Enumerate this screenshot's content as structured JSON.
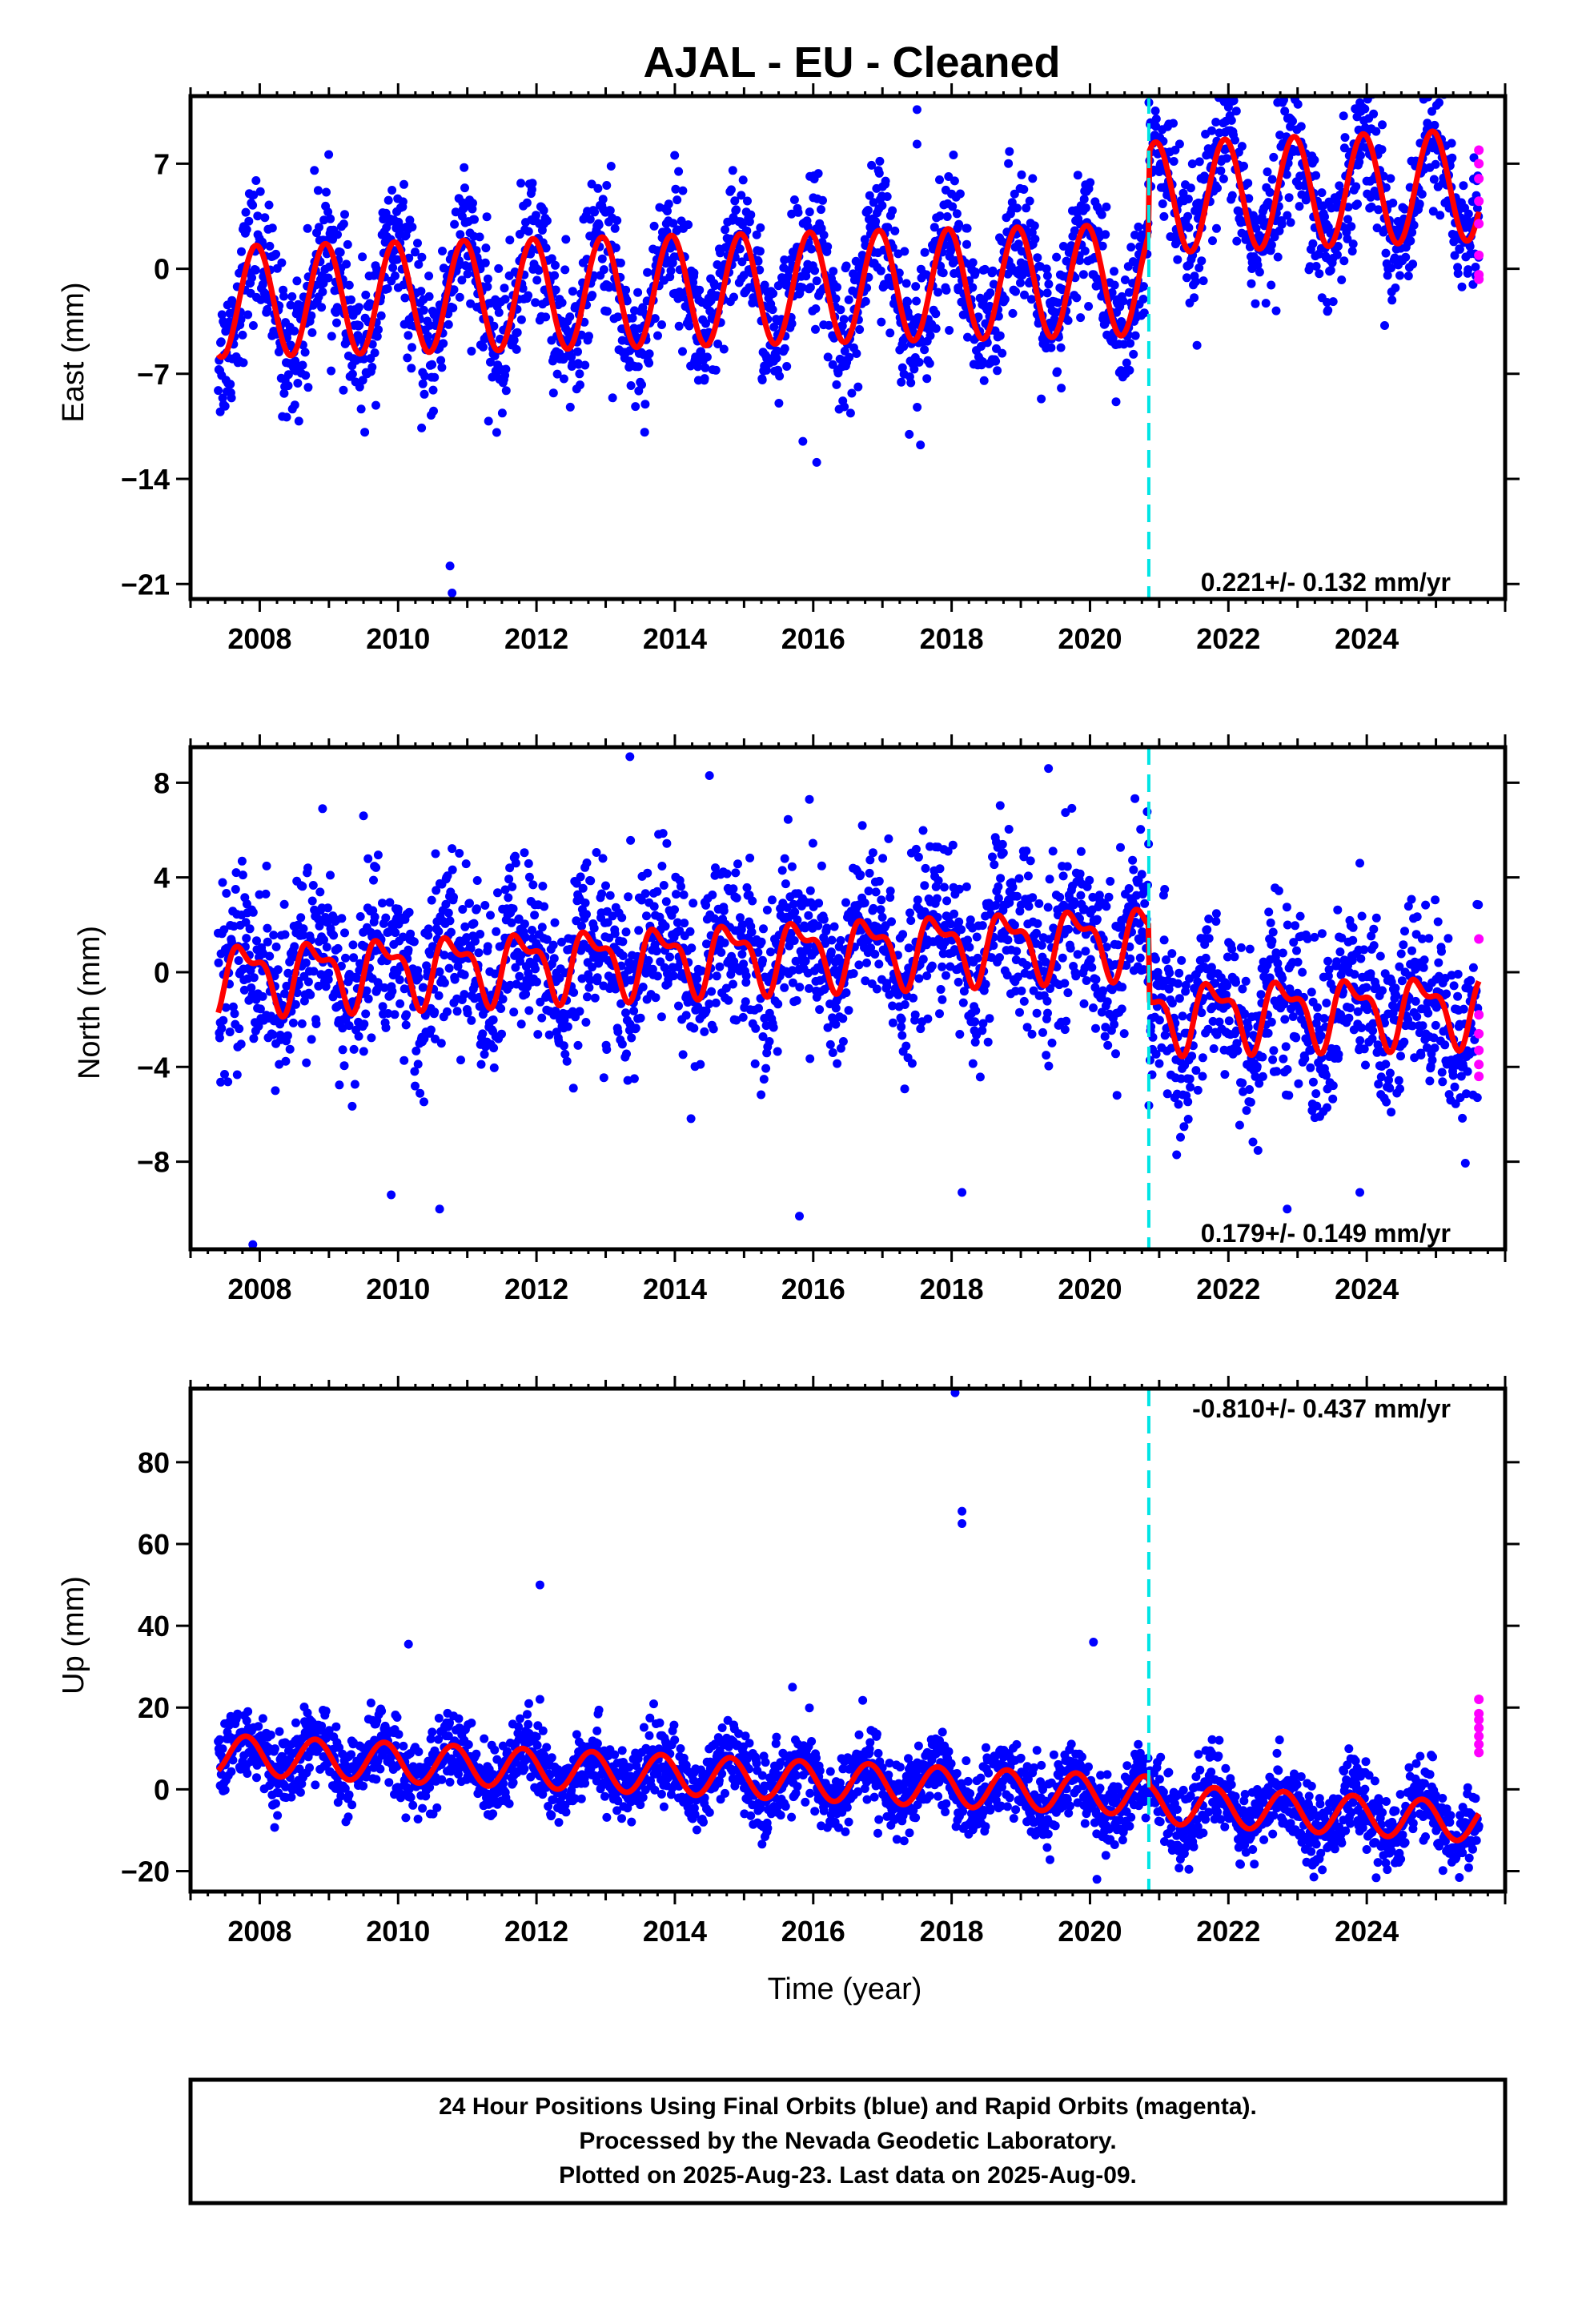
{
  "title": "AJAL  - EU - Cleaned",
  "footer": {
    "lines": [
      "24 Hour Positions Using Final Orbits (blue) and Rapid Orbits (magenta).",
      "Processed by the Nevada Geodetic Laboratory.",
      "Plotted on 2025-Aug-23. Last data on 2025-Aug-09."
    ]
  },
  "colors": {
    "final_orbits": "#0000ff",
    "rapid_orbits": "#ff00ff",
    "model_fit": "#ff0000",
    "offset_line": "#00e5e5",
    "frame": "#000000"
  },
  "chart_data": [
    {
      "type": "scatter",
      "component": "east",
      "ylabel": "East (mm)",
      "xlabel": "",
      "xlim": [
        2007.0,
        2026.0
      ],
      "ylim": [
        -22,
        11.5
      ],
      "xticks": [
        2008,
        2010,
        2012,
        2014,
        2016,
        2018,
        2020,
        2022,
        2024
      ],
      "yticks": [
        7,
        0,
        -7,
        -14,
        -21
      ],
      "ytick_labels": [
        "7",
        "0",
        "−7",
        "−14",
        "−21"
      ],
      "rate_text": "0.221+/- 0.132 mm/yr",
      "rate_position": "bottom-right",
      "offset_epoch": 2020.85,
      "fit": {
        "t_start": 2007.4,
        "t_end": 2025.62,
        "pre_intercept": -2.2,
        "pre_slope": 0.11,
        "post_intercept": 2.3,
        "post_slope": 0.18,
        "ref_year": 2007.4,
        "amplitude": 3.7,
        "phase_year": 2007.7
      },
      "scatter_band": {
        "spread": 2.3,
        "count": 2600
      },
      "outliers": [
        {
          "x": 2010.75,
          "y": -19.8
        },
        {
          "x": 2010.78,
          "y": -21.6
        },
        {
          "x": 2016.05,
          "y": -12.9
        },
        {
          "x": 2015.85,
          "y": -11.5
        },
        {
          "x": 2008.7,
          "y": -7.9
        },
        {
          "x": 2013.1,
          "y": -8.6
        },
        {
          "x": 2017.5,
          "y": 10.6
        },
        {
          "x": 2017.5,
          "y": 8.3
        }
      ],
      "rapid_points": {
        "x": 2025.62,
        "y": [
          7.9,
          7.0,
          6.0,
          4.5,
          3.0,
          0.9,
          -0.4,
          -0.7
        ]
      }
    },
    {
      "type": "scatter",
      "component": "north",
      "ylabel": "North (mm)",
      "xlabel": "",
      "xlim": [
        2007.0,
        2026.0
      ],
      "ylim": [
        -11.7,
        9.5
      ],
      "xticks": [
        2008,
        2010,
        2012,
        2014,
        2016,
        2018,
        2020,
        2022,
        2024
      ],
      "yticks": [
        8,
        4,
        0,
        -4,
        -8
      ],
      "ytick_labels": [
        "8",
        "4",
        "0",
        "−4",
        "−8"
      ],
      "rate_text": "0.179+/- 0.149 mm/yr",
      "rate_position": "bottom-right",
      "offset_epoch": 2020.85,
      "fit": {
        "t_start": 2007.4,
        "t_end": 2025.62,
        "pre_intercept": -0.2,
        "pre_slope": 0.12,
        "post_intercept": -2.6,
        "post_slope": 0.06,
        "ref_year": 2007.4,
        "amplitude": 1.25,
        "phase_year": 2007.55,
        "second_harmonic": 0.6
      },
      "scatter_band": {
        "spread": 1.8,
        "count": 2600
      },
      "outliers": [
        {
          "x": 2007.9,
          "y": -11.5
        },
        {
          "x": 2009.9,
          "y": -9.4
        },
        {
          "x": 2010.6,
          "y": -10.0
        },
        {
          "x": 2015.8,
          "y": -10.3
        },
        {
          "x": 2018.15,
          "y": -9.3
        },
        {
          "x": 2022.85,
          "y": -10.0
        },
        {
          "x": 2013.35,
          "y": 9.1
        },
        {
          "x": 2014.5,
          "y": 8.3
        },
        {
          "x": 2009.5,
          "y": 6.6
        },
        {
          "x": 2019.4,
          "y": 8.6
        },
        {
          "x": 2023.9,
          "y": 4.6
        },
        {
          "x": 2023.9,
          "y": -9.3
        }
      ],
      "rapid_points": {
        "x": 2025.62,
        "y": [
          1.4,
          -1.8,
          -2.6,
          -3.3,
          -3.9,
          -4.4
        ]
      }
    },
    {
      "type": "scatter",
      "component": "up",
      "ylabel": "Up (mm)",
      "xlabel": "Time (year)",
      "xlim": [
        2007.0,
        2026.0
      ],
      "ylim": [
        -25,
        98
      ],
      "xticks": [
        2008,
        2010,
        2012,
        2014,
        2016,
        2018,
        2020,
        2022,
        2024
      ],
      "yticks": [
        80,
        60,
        40,
        20,
        0,
        -20
      ],
      "ytick_labels": [
        "80",
        "60",
        "40",
        "20",
        "0",
        "−20"
      ],
      "rate_text": "-0.810+/- 0.437 mm/yr",
      "rate_position": "top-right",
      "offset_epoch": 2020.85,
      "fit": {
        "t_start": 2007.4,
        "t_end": 2025.62,
        "pre_intercept": 8.5,
        "pre_slope": -0.75,
        "post_intercept": 9.3,
        "post_slope": -0.95,
        "ref_year": 2007.4,
        "amplitude": 4.8,
        "phase_year": 2007.55
      },
      "scatter_band": {
        "spread": 4.5,
        "count": 2600
      },
      "outliers": [
        {
          "x": 2018.05,
          "y": 97.0
        },
        {
          "x": 2018.15,
          "y": 68.0
        },
        {
          "x": 2018.15,
          "y": 65.0
        },
        {
          "x": 2012.05,
          "y": 50.0
        },
        {
          "x": 2010.15,
          "y": 35.5
        },
        {
          "x": 2020.05,
          "y": 36.0
        },
        {
          "x": 2012.05,
          "y": 22.0
        },
        {
          "x": 2015.7,
          "y": 25.0
        },
        {
          "x": 2020.1,
          "y": -22.0
        }
      ],
      "rapid_points": {
        "x": 2025.62,
        "y": [
          22.0,
          18.5,
          17.0,
          15.0,
          13.0,
          11.0,
          9.0
        ]
      }
    }
  ]
}
